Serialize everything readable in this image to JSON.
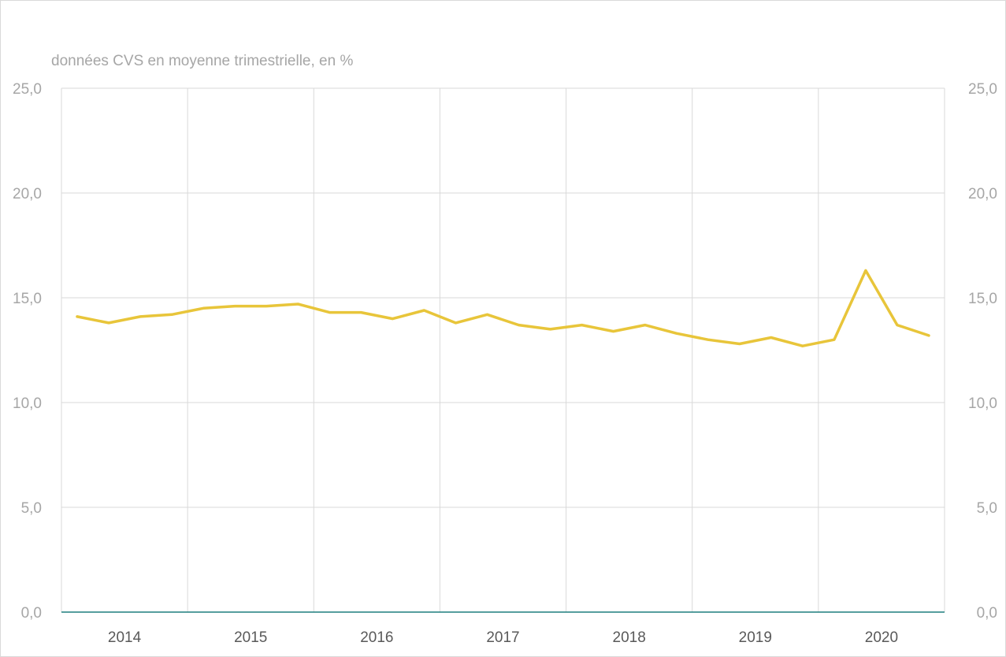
{
  "chart_data": {
    "type": "line",
    "unit_label": "données CVS en moyenne trimestrielle, en %",
    "ylim": [
      0,
      25
    ],
    "y_ticks": [
      "0,0",
      "5,0",
      "10,0",
      "15,0",
      "20,0",
      "25,0"
    ],
    "y_axes": [
      "left",
      "right"
    ],
    "grid": "horizontal-and-vertical",
    "x_ticks": [
      "2014",
      "2015",
      "2016",
      "2017",
      "2018",
      "2019",
      "2020"
    ],
    "x": [
      "2014-Q1",
      "2014-Q2",
      "2014-Q3",
      "2014-Q4",
      "2015-Q1",
      "2015-Q2",
      "2015-Q3",
      "2015-Q4",
      "2016-Q1",
      "2016-Q2",
      "2016-Q3",
      "2016-Q4",
      "2017-Q1",
      "2017-Q2",
      "2017-Q3",
      "2017-Q4",
      "2018-Q1",
      "2018-Q2",
      "2018-Q3",
      "2018-Q4",
      "2019-Q1",
      "2019-Q2",
      "2019-Q3",
      "2019-Q4",
      "2020-Q1",
      "2020-Q2",
      "2020-Q3",
      "2020-Q4"
    ],
    "series": [
      {
        "color": "#e8c53a",
        "values": [
          14.1,
          13.8,
          14.1,
          14.2,
          14.5,
          14.6,
          14.6,
          14.7,
          14.3,
          14.3,
          14.0,
          14.4,
          13.8,
          14.2,
          13.7,
          13.5,
          13.7,
          13.4,
          13.7,
          13.3,
          13.0,
          12.8,
          13.1,
          12.7,
          13.0,
          16.3,
          13.7,
          13.2
        ]
      }
    ],
    "baseline_color": "#1f7f7f",
    "gridline_color": "#d9d9d9"
  }
}
